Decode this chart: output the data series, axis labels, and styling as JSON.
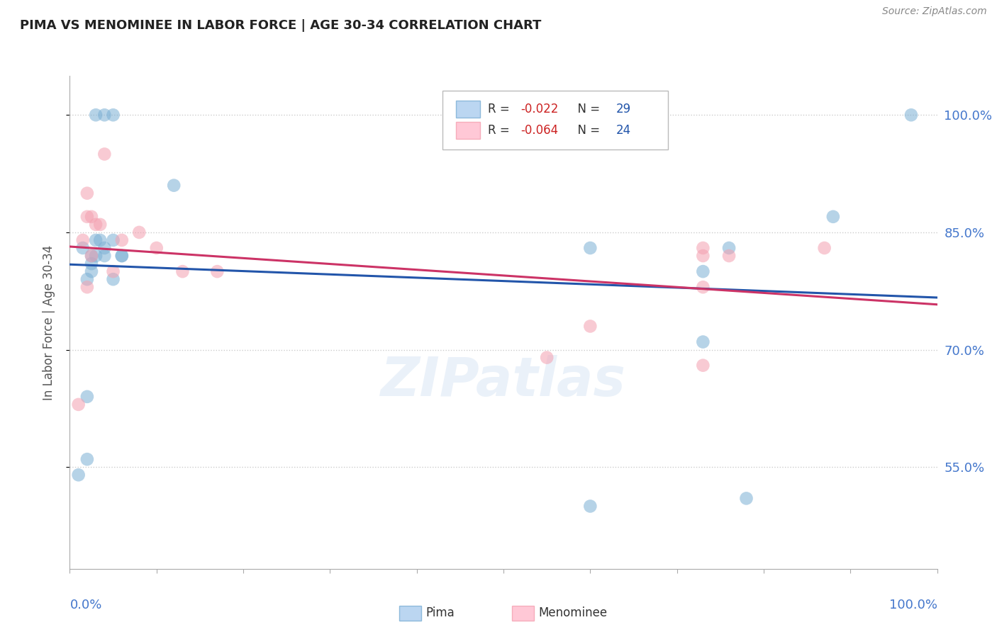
{
  "title": "PIMA VS MENOMINEE IN LABOR FORCE | AGE 30-34 CORRELATION CHART",
  "source": "Source: ZipAtlas.com",
  "ylabel": "In Labor Force | Age 30-34",
  "pima_color": "#7bafd4",
  "menominee_color": "#f4a0b0",
  "trend_pima_color": "#2255aa",
  "trend_menominee_color": "#cc3366",
  "watermark": "ZIPatlas",
  "xlim": [
    0.0,
    1.0
  ],
  "ylim": [
    0.42,
    1.05
  ],
  "y_ticks": [
    0.55,
    0.7,
    0.85,
    1.0
  ],
  "y_tick_labels": [
    "55.0%",
    "70.0%",
    "85.0%",
    "100.0%"
  ],
  "pima_x": [
    0.01,
    0.02,
    0.025,
    0.03,
    0.035,
    0.04,
    0.05,
    0.06,
    0.02,
    0.025,
    0.04,
    0.05,
    0.06,
    0.12,
    0.6,
    0.73,
    0.76,
    0.88,
    0.97,
    0.03,
    0.04,
    0.05,
    0.6,
    0.78,
    0.73,
    0.02,
    0.015,
    0.025,
    0.03
  ],
  "pima_y": [
    0.54,
    0.56,
    0.82,
    0.82,
    0.84,
    0.83,
    0.84,
    0.82,
    0.79,
    0.8,
    0.82,
    0.79,
    0.82,
    0.91,
    0.5,
    0.71,
    0.83,
    0.87,
    1.0,
    1.0,
    1.0,
    1.0,
    0.83,
    0.51,
    0.8,
    0.64,
    0.83,
    0.81,
    0.84
  ],
  "menominee_x": [
    0.01,
    0.02,
    0.025,
    0.04,
    0.02,
    0.03,
    0.035,
    0.05,
    0.06,
    0.08,
    0.1,
    0.13,
    0.17,
    0.6,
    0.73,
    0.76,
    0.87,
    0.015,
    0.025,
    0.02,
    0.55,
    0.73,
    0.73,
    0.73
  ],
  "menominee_y": [
    0.63,
    0.9,
    0.87,
    0.95,
    0.87,
    0.86,
    0.86,
    0.8,
    0.84,
    0.85,
    0.83,
    0.8,
    0.8,
    0.73,
    0.83,
    0.82,
    0.83,
    0.84,
    0.82,
    0.78,
    0.69,
    0.82,
    0.78,
    0.68
  ],
  "background_color": "#ffffff",
  "grid_color": "#cccccc",
  "legend_R_pima": "-0.022",
  "legend_N_pima": "29",
  "legend_R_menominee": "-0.064",
  "legend_N_menominee": "24"
}
